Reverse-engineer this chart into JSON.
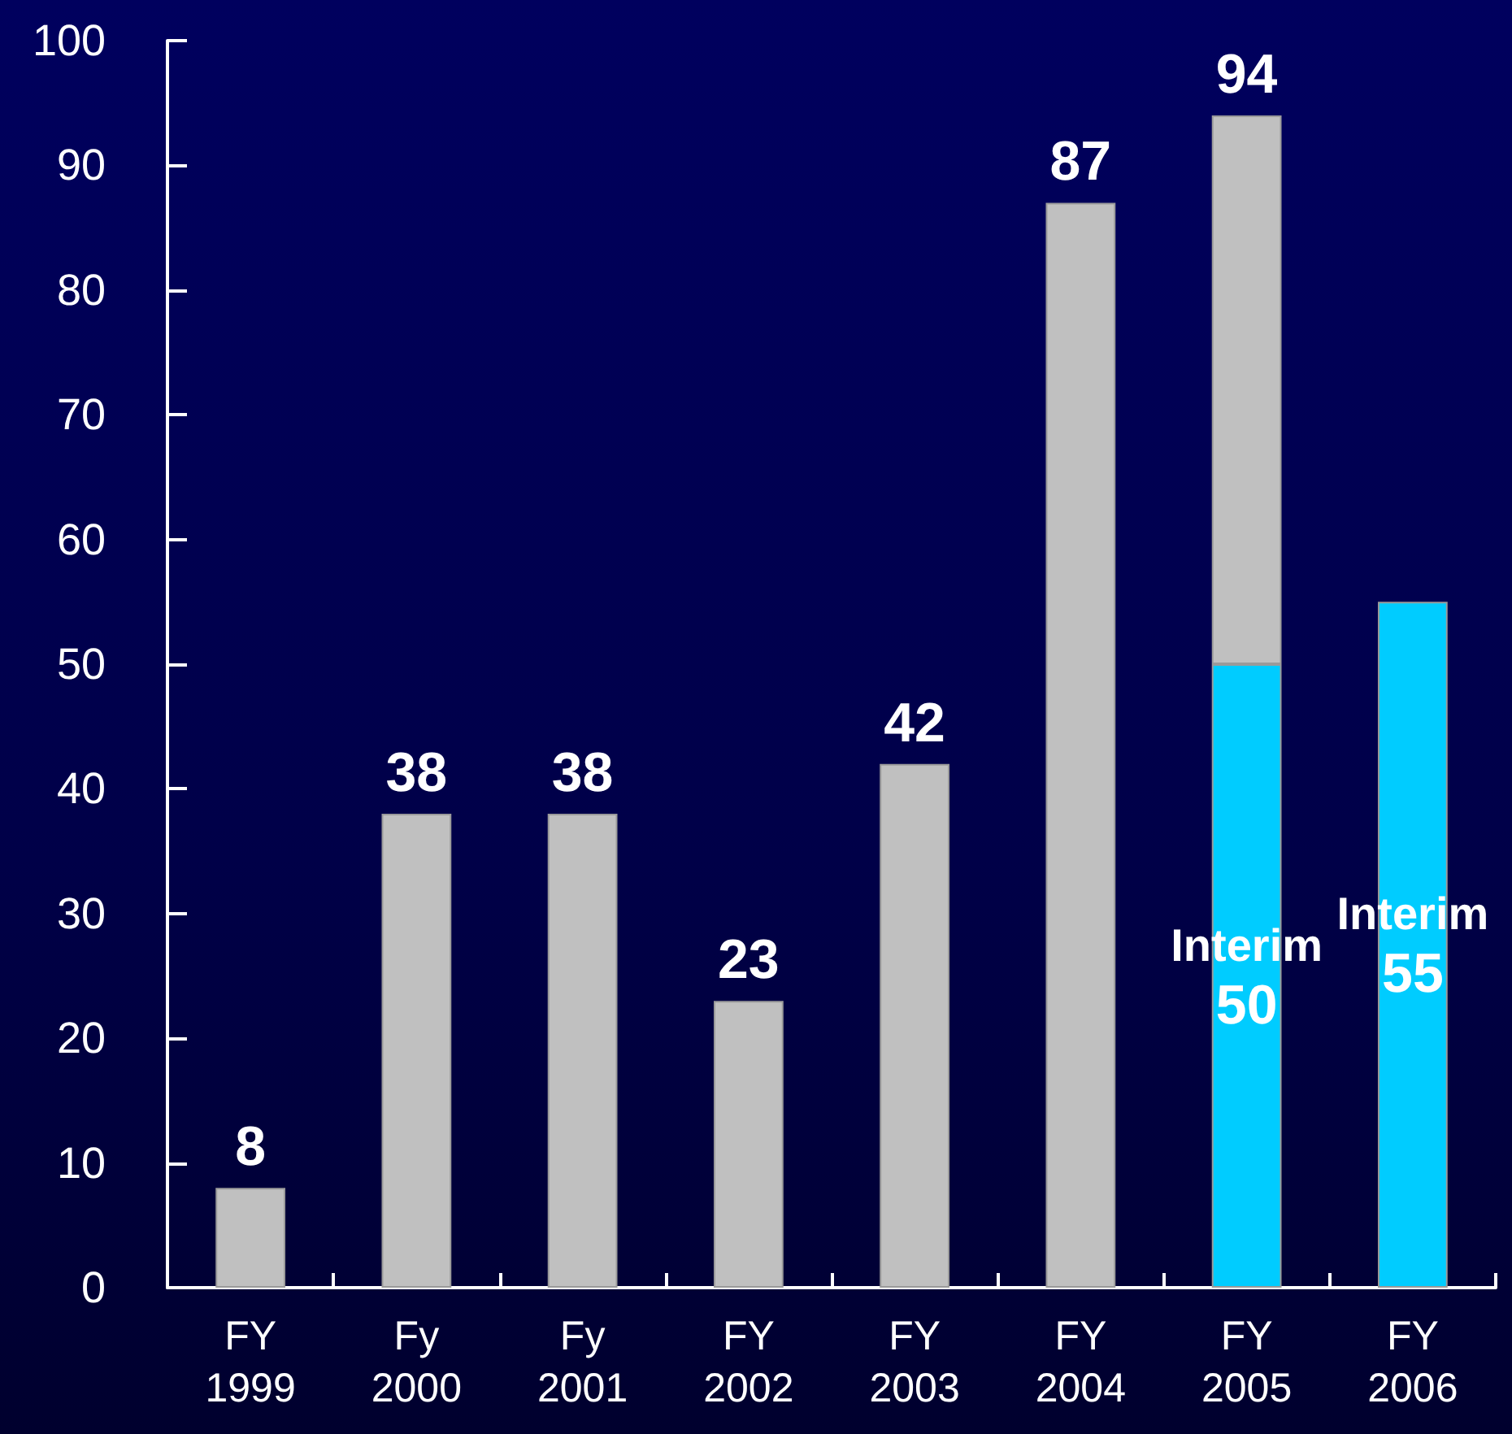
{
  "chart_data": {
    "type": "bar",
    "categories": [
      "FY 1999",
      "Fy 2000",
      "Fy 2001",
      "FY 2002",
      "FY 2003",
      "FY 2004",
      "FY 2005",
      "FY 2006"
    ],
    "series": [
      {
        "name": "Interim",
        "color": "#00ccff",
        "values": [
          null,
          null,
          null,
          null,
          null,
          null,
          50,
          55
        ],
        "value_labels": [
          null,
          null,
          null,
          null,
          null,
          null,
          "50",
          "55"
        ]
      },
      {
        "color": "#c0c0c0",
        "values": [
          8,
          38,
          38,
          23,
          42,
          87,
          44,
          null
        ]
      }
    ],
    "stacked": true,
    "totals": [
      "8",
      "38",
      "38",
      "23",
      "42",
      "87",
      "94",
      null
    ],
    "ylim": [
      0,
      100
    ],
    "yticks": [
      0,
      10,
      20,
      30,
      40,
      50,
      60,
      70,
      80,
      90,
      100
    ]
  }
}
